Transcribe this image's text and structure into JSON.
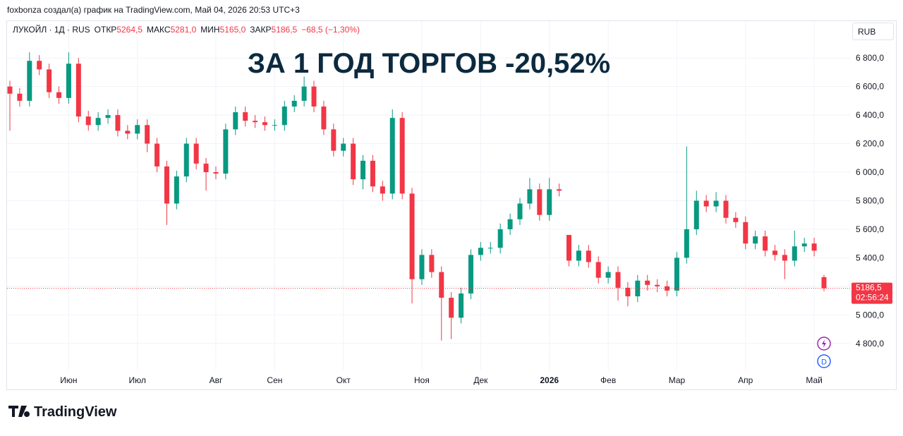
{
  "header": "foxbonza создал(а) график на TradingView.com, Май 04, 2026 20:53 UTC+3",
  "brand": "TradingView",
  "chart_data": {
    "type": "candlestick",
    "title": "ЗА 1 ГОД ТОРГОВ -20,52%",
    "currency": "RUB",
    "legend": {
      "symbol": "ЛУКОЙЛ · 1Д · RUS",
      "items": [
        {
          "label": "ОТКР",
          "value": "5264,5"
        },
        {
          "label": "МАКС",
          "value": "5281,0"
        },
        {
          "label": "МИН",
          "value": "5165,0"
        },
        {
          "label": "ЗАКР",
          "value": "5186,5"
        }
      ],
      "change": "−68,5 (−1,30%)"
    },
    "up_color": "#089981",
    "down_color": "#f23645",
    "categories": [
      null,
      null,
      null,
      null,
      null,
      null,
      "Июн",
      null,
      null,
      null,
      null,
      null,
      null,
      "Июл",
      null,
      null,
      null,
      null,
      null,
      null,
      null,
      "Авг",
      null,
      null,
      null,
      null,
      null,
      "Сен",
      null,
      null,
      null,
      null,
      null,
      null,
      "Окт",
      null,
      null,
      null,
      null,
      null,
      null,
      null,
      "Ноя",
      null,
      null,
      null,
      null,
      null,
      "Дек",
      null,
      null,
      null,
      null,
      null,
      null,
      "2026",
      null,
      null,
      null,
      null,
      null,
      "Фев",
      null,
      null,
      null,
      null,
      null,
      null,
      "Мар",
      null,
      null,
      null,
      null,
      null,
      null,
      "Апр",
      null,
      null,
      null,
      null,
      null,
      null,
      "Май",
      null
    ],
    "open": [
      6600,
      6550,
      6500,
      6780,
      6720,
      6560,
      6520,
      6760,
      6390,
      6330,
      6380,
      6400,
      6290,
      6270,
      6330,
      6200,
      6040,
      5780,
      5970,
      6200,
      6060,
      6000,
      5990,
      6300,
      6420,
      6360,
      6350,
      6330,
      6330,
      6460,
      6500,
      6600,
      6460,
      6300,
      6150,
      6200,
      5950,
      6080,
      5900,
      5850,
      6380,
      5850,
      5250,
      5420,
      5300,
      5120,
      4980,
      5150,
      5420,
      5470,
      5470,
      5600,
      5670,
      5780,
      5880,
      5700,
      5880,
      5560,
      5380,
      5450,
      5370,
      5260,
      5300,
      5190,
      5130,
      5240,
      5210,
      5200,
      5170,
      5400,
      5600,
      5800,
      5760,
      5800,
      5680,
      5650,
      5500,
      5550,
      5450,
      5420,
      5380,
      5480,
      5500,
      5264.5
    ],
    "high": [
      6640,
      6590,
      6840,
      6820,
      6760,
      6600,
      6840,
      6800,
      6430,
      6420,
      6440,
      6440,
      6330,
      6370,
      6370,
      6240,
      6080,
      6010,
      6240,
      6240,
      6100,
      6040,
      6340,
      6460,
      6460,
      6400,
      6390,
      6370,
      6500,
      6540,
      6670,
      6640,
      6500,
      6340,
      6240,
      6240,
      6120,
      6120,
      5940,
      6440,
      6420,
      5890,
      5460,
      5460,
      5340,
      5160,
      5190,
      5460,
      5510,
      5510,
      5640,
      5710,
      5820,
      5960,
      5920,
      5960,
      5920,
      5560,
      5490,
      5490,
      5410,
      5340,
      5340,
      5230,
      5280,
      5280,
      5250,
      5240,
      5440,
      6180,
      5870,
      5840,
      5860,
      5840,
      5720,
      5690,
      5590,
      5590,
      5490,
      5460,
      5590,
      5540,
      5540,
      5281
    ],
    "low": [
      6290,
      6460,
      6460,
      6680,
      6520,
      6480,
      6480,
      6350,
      6290,
      6290,
      6340,
      6250,
      6230,
      6230,
      6140,
      6000,
      5630,
      5740,
      5930,
      6020,
      5870,
      5950,
      5950,
      6260,
      6320,
      6310,
      6290,
      6290,
      6290,
      6420,
      6460,
      6420,
      6260,
      6110,
      6110,
      5910,
      5880,
      5860,
      5800,
      5810,
      5810,
      5080,
      5210,
      5260,
      4820,
      4830,
      4940,
      5110,
      5380,
      5430,
      5430,
      5560,
      5630,
      5740,
      5660,
      5660,
      5830,
      5340,
      5340,
      5330,
      5220,
      5220,
      5100,
      5060,
      5090,
      5170,
      5160,
      5130,
      5130,
      5360,
      5560,
      5720,
      5720,
      5640,
      5610,
      5460,
      5460,
      5410,
      5380,
      5250,
      5340,
      5440,
      5410,
      5165
    ],
    "close": [
      6550,
      6500,
      6780,
      6720,
      6560,
      6520,
      6760,
      6390,
      6330,
      6380,
      6400,
      6290,
      6270,
      6330,
      6200,
      6040,
      5780,
      5970,
      6200,
      6060,
      6000,
      5990,
      6300,
      6420,
      6360,
      6350,
      6330,
      6330,
      6460,
      6500,
      6600,
      6460,
      6300,
      6150,
      6200,
      5950,
      6080,
      5900,
      5850,
      6380,
      5850,
      5250,
      5420,
      5300,
      5120,
      4980,
      5150,
      5420,
      5470,
      5470,
      5600,
      5670,
      5780,
      5880,
      5700,
      5880,
      5870,
      5380,
      5450,
      5370,
      5260,
      5300,
      5190,
      5130,
      5240,
      5210,
      5200,
      5170,
      5400,
      5600,
      5800,
      5760,
      5800,
      5680,
      5650,
      5500,
      5550,
      5450,
      5420,
      5380,
      5480,
      5500,
      5450,
      5186.5
    ],
    "ylim": [
      4611,
      7058
    ],
    "yticks": [
      {
        "value": 4800,
        "label": "4 800,0"
      },
      {
        "value": 5000,
        "label": "5 000,0"
      },
      {
        "value": 5200,
        "label": "5 200,0"
      },
      {
        "value": 5400,
        "label": "5 400,0"
      },
      {
        "value": 5600,
        "label": "5 600,0"
      },
      {
        "value": 5800,
        "label": "5 800,0"
      },
      {
        "value": 6000,
        "label": "6 000,0"
      },
      {
        "value": 6200,
        "label": "6 200,0"
      },
      {
        "value": 6400,
        "label": "6 400,0"
      },
      {
        "value": 6600,
        "label": "6 600,0"
      },
      {
        "value": 6800,
        "label": "6 800,0"
      }
    ],
    "grid": true,
    "last_price": {
      "value": 5186.5,
      "label": "5186,5"
    },
    "countdown": "02:56:24",
    "icon_letter": "D"
  }
}
